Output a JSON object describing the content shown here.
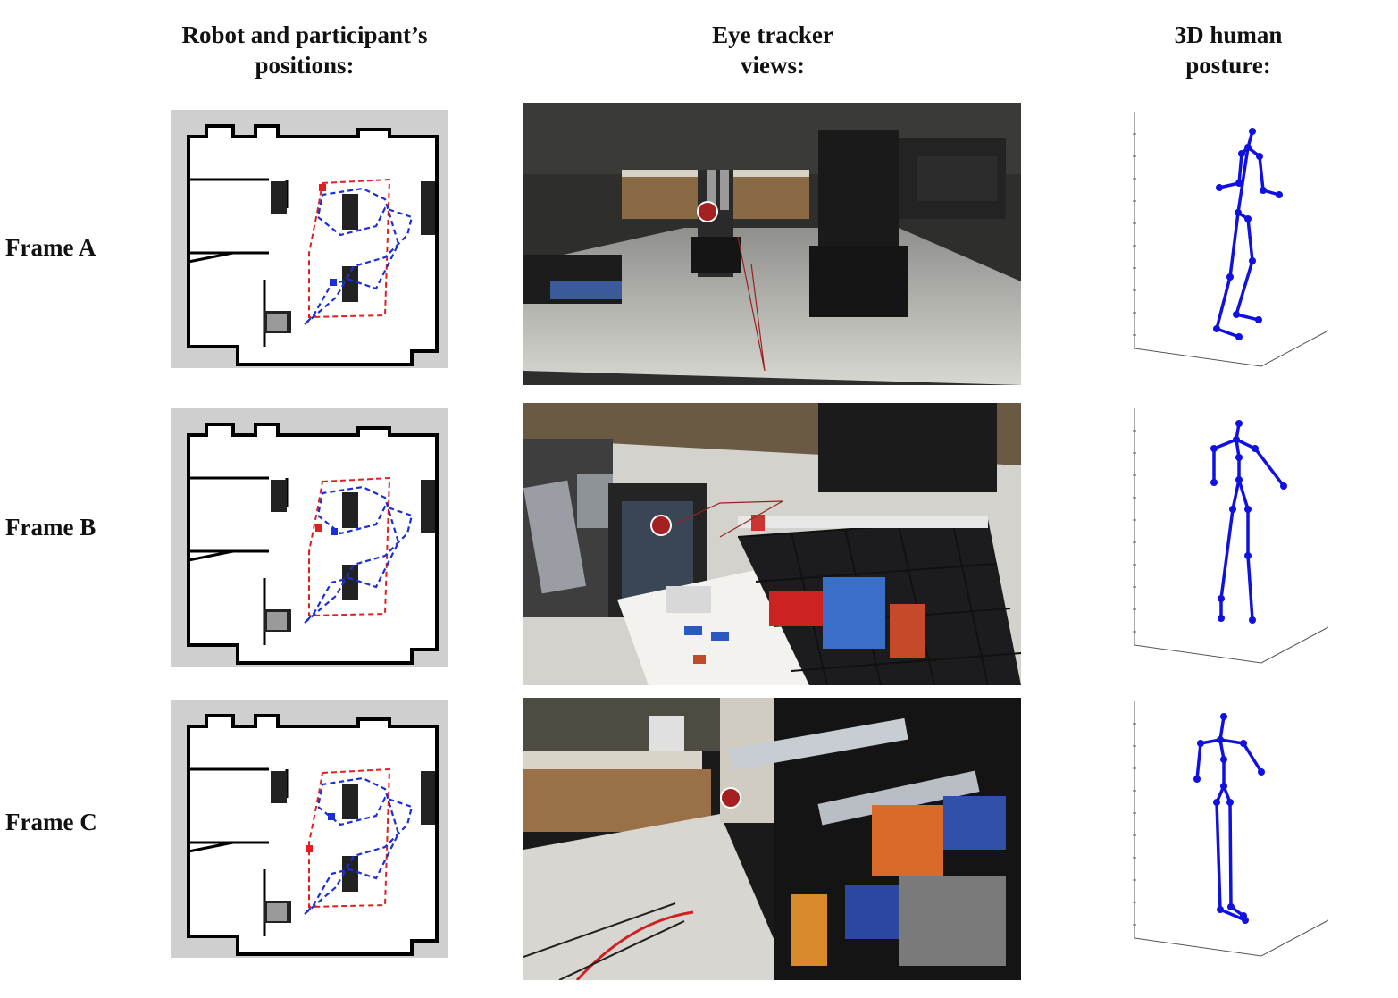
{
  "headers": {
    "positions": [
      "Robot and participant’s",
      "positions:"
    ],
    "eye_tracker": [
      "Eye tracker",
      "views:"
    ],
    "posture": [
      "3D human",
      "posture:"
    ]
  },
  "rows": [
    {
      "label": "Frame A",
      "scene": "robot-in-aisle"
    },
    {
      "label": "Frame B",
      "scene": "robot-arm-and-cart"
    },
    {
      "label": "Frame C",
      "scene": "shelf-with-products"
    }
  ],
  "colors": {
    "robot_path": "#e02020",
    "participant_path": "#1a2fd6",
    "skeleton": "#1010e0",
    "gaze_marker": "#a52020",
    "map_background": "#cfcfcf"
  }
}
